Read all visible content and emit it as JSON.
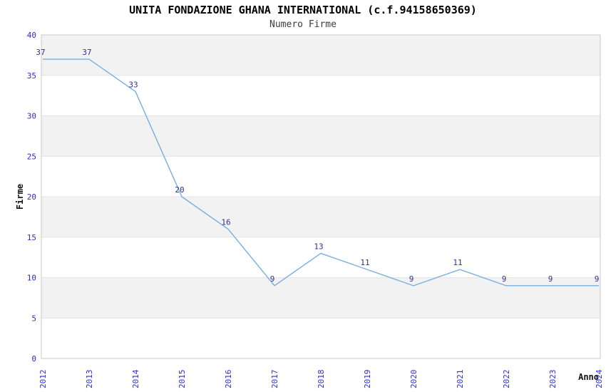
{
  "header": {
    "title": "UNITA FONDAZIONE GHANA INTERNATIONAL (c.f.94158650369)",
    "subtitle": "Numero Firme"
  },
  "chart_data": {
    "type": "line",
    "title": "UNITA FONDAZIONE GHANA INTERNATIONAL (c.f.94158650369)",
    "subtitle": "Numero Firme",
    "xlabel": "Anno",
    "ylabel": "Firme",
    "categories": [
      "2012",
      "2013",
      "2014",
      "2015",
      "2016",
      "2017",
      "2018",
      "2019",
      "2020",
      "2021",
      "2022",
      "2023",
      "2024"
    ],
    "values": [
      37,
      37,
      33,
      20,
      16,
      9,
      13,
      11,
      9,
      11,
      9,
      9,
      9
    ],
    "ylim": [
      0,
      40
    ],
    "ytick_step": 5,
    "grid": "horizontal-bands",
    "legend": "none",
    "colors": {
      "line": "#79ade0",
      "data_label": "#31318f",
      "tick_label": "#2e2ecf",
      "band_fill": "#f2f2f2",
      "gridline": "#e4e4e4",
      "plot_border": "#c9c9c9",
      "axis_title": "#111111",
      "background": "#ffffff"
    }
  }
}
